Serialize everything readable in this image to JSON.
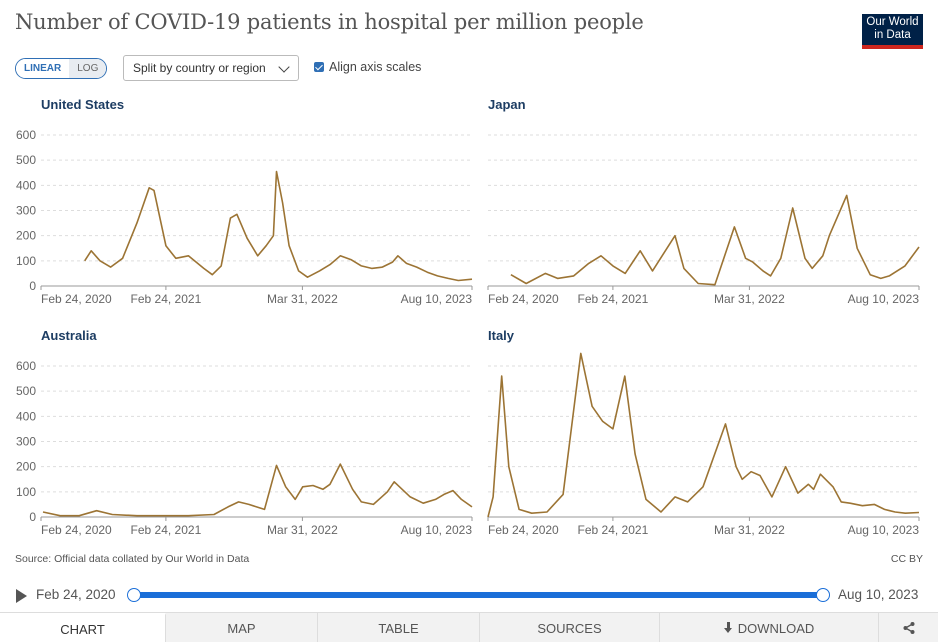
{
  "title": "Number of COVID-19 patients in hospital per million people",
  "logo": {
    "line1": "Our World",
    "line2": "in Data"
  },
  "controls": {
    "linear_label": "LINEAR",
    "log_label": "LOG",
    "split_select": "Split by country or region",
    "align_label": "Align axis scales",
    "align_checked": true
  },
  "source": "Source: Official data collated by Our World in Data",
  "license": "CC BY",
  "timeline": {
    "start": "Feb 24, 2020",
    "end": "Aug 10, 2023",
    "selected_fraction": 1.0
  },
  "tabs": [
    {
      "label": "CHART",
      "active": true
    },
    {
      "label": "MAP",
      "active": false
    },
    {
      "label": "TABLE",
      "active": false
    },
    {
      "label": "SOURCES",
      "active": false
    },
    {
      "label": "DOWNLOAD",
      "active": false
    }
  ],
  "colors": {
    "line": "#9c7434",
    "grid": "#dddddd",
    "panel_title": "#1d3d63",
    "accent": "#1a6ed8"
  },
  "chart_data": [
    {
      "type": "line",
      "title": "United States",
      "ylim": [
        0,
        600
      ],
      "yticks": [
        0,
        100,
        200,
        300,
        400,
        500,
        600
      ],
      "xlim": [
        "2020-02-24",
        "2023-08-10"
      ],
      "xticks": [
        "Feb 24, 2020",
        "Feb 24, 2021",
        "Mar 31, 2022",
        "Aug 10, 2023"
      ],
      "x": [
        "2020-07-01",
        "2020-07-20",
        "2020-08-15",
        "2020-09-15",
        "2020-10-20",
        "2020-12-01",
        "2021-01-06",
        "2021-01-20",
        "2021-02-24",
        "2021-03-25",
        "2021-05-01",
        "2021-06-15",
        "2021-07-10",
        "2021-08-05",
        "2021-09-01",
        "2021-09-20",
        "2021-10-20",
        "2021-11-20",
        "2021-12-15",
        "2022-01-05",
        "2022-01-14",
        "2022-02-01",
        "2022-02-20",
        "2022-03-20",
        "2022-04-15",
        "2022-05-20",
        "2022-06-20",
        "2022-07-20",
        "2022-08-20",
        "2022-09-20",
        "2022-10-20",
        "2022-11-20",
        "2022-12-20",
        "2023-01-05",
        "2023-01-30",
        "2023-03-01",
        "2023-04-01",
        "2023-05-01",
        "2023-06-01",
        "2023-07-01",
        "2023-08-10"
      ],
      "y": [
        100,
        140,
        100,
        75,
        110,
        250,
        390,
        380,
        160,
        110,
        120,
        70,
        45,
        80,
        270,
        285,
        190,
        120,
        160,
        200,
        455,
        330,
        160,
        60,
        35,
        60,
        85,
        120,
        105,
        80,
        70,
        75,
        95,
        120,
        90,
        75,
        55,
        40,
        30,
        22,
        27
      ]
    },
    {
      "type": "line",
      "title": "Japan",
      "ylim": [
        0,
        600
      ],
      "yticks": [
        0,
        100,
        200,
        300,
        400,
        500,
        600
      ],
      "xlim": [
        "2020-02-24",
        "2023-08-10"
      ],
      "xticks": [
        "Feb 24, 2020",
        "Feb 24, 2021",
        "Mar 31, 2022",
        "Aug 10, 2023"
      ],
      "x": [
        "2020-05-01",
        "2020-06-15",
        "2020-08-10",
        "2020-09-15",
        "2020-11-01",
        "2020-12-15",
        "2021-01-20",
        "2021-02-24",
        "2021-04-01",
        "2021-05-15",
        "2021-06-20",
        "2021-08-25",
        "2021-09-20",
        "2021-11-01",
        "2021-12-20",
        "2022-02-15",
        "2022-03-20",
        "2022-04-10",
        "2022-05-10",
        "2022-06-01",
        "2022-07-01",
        "2022-08-05",
        "2022-09-10",
        "2022-10-01",
        "2022-11-01",
        "2022-11-20",
        "2023-01-10",
        "2023-02-10",
        "2023-03-20",
        "2023-04-20",
        "2023-05-15",
        "2023-06-30",
        "2023-08-10"
      ],
      "y": [
        45,
        10,
        50,
        30,
        40,
        90,
        120,
        80,
        50,
        140,
        60,
        200,
        70,
        10,
        5,
        235,
        110,
        95,
        60,
        40,
        110,
        310,
        110,
        70,
        120,
        200,
        360,
        150,
        45,
        30,
        40,
        80,
        155
      ]
    },
    {
      "type": "line",
      "title": "Australia",
      "ylim": [
        0,
        600
      ],
      "yticks": [
        0,
        100,
        200,
        300,
        400,
        500,
        600
      ],
      "xlim": [
        "2020-02-24",
        "2023-08-10"
      ],
      "xticks": [
        "Feb 24, 2020",
        "Feb 24, 2021",
        "Mar 31, 2022",
        "Aug 10, 2023"
      ],
      "x": [
        "2020-03-01",
        "2020-04-20",
        "2020-06-15",
        "2020-08-05",
        "2020-09-20",
        "2020-12-01",
        "2021-02-24",
        "2021-05-01",
        "2021-07-15",
        "2021-08-25",
        "2021-09-25",
        "2021-10-25",
        "2021-12-10",
        "2022-01-14",
        "2022-02-10",
        "2022-03-10",
        "2022-04-01",
        "2022-05-01",
        "2022-05-30",
        "2022-06-20",
        "2022-07-20",
        "2022-08-25",
        "2022-09-20",
        "2022-10-25",
        "2022-12-05",
        "2022-12-25",
        "2023-02-10",
        "2023-03-20",
        "2023-04-25",
        "2023-05-20",
        "2023-06-15",
        "2023-07-10",
        "2023-08-10"
      ],
      "y": [
        20,
        5,
        5,
        25,
        10,
        5,
        5,
        5,
        10,
        40,
        60,
        50,
        30,
        205,
        120,
        70,
        120,
        125,
        110,
        130,
        210,
        110,
        60,
        50,
        100,
        140,
        80,
        55,
        70,
        90,
        105,
        70,
        40
      ]
    },
    {
      "type": "line",
      "title": "Italy",
      "ylim": [
        0,
        600
      ],
      "yticks": [
        0,
        100,
        200,
        300,
        400,
        500,
        600
      ],
      "xlim": [
        "2020-02-24",
        "2023-08-10"
      ],
      "xticks": [
        "Feb 24, 2020",
        "Feb 24, 2021",
        "Mar 31, 2022",
        "Aug 10, 2023"
      ],
      "x": [
        "2020-02-24",
        "2020-03-10",
        "2020-04-04",
        "2020-04-25",
        "2020-05-25",
        "2020-07-01",
        "2020-08-15",
        "2020-10-01",
        "2020-11-22",
        "2020-12-25",
        "2021-01-25",
        "2021-02-24",
        "2021-03-31",
        "2021-04-30",
        "2021-06-01",
        "2021-07-15",
        "2021-08-25",
        "2021-10-01",
        "2021-11-15",
        "2022-01-20",
        "2022-02-20",
        "2022-03-10",
        "2022-04-05",
        "2022-05-01",
        "2022-06-05",
        "2022-07-15",
        "2022-08-20",
        "2022-09-20",
        "2022-10-05",
        "2022-10-25",
        "2022-12-01",
        "2022-12-25",
        "2023-01-20",
        "2023-02-25",
        "2023-04-01",
        "2023-05-01",
        "2023-06-01",
        "2023-07-01",
        "2023-08-10"
      ],
      "y": [
        0,
        80,
        560,
        200,
        30,
        15,
        20,
        90,
        650,
        440,
        380,
        350,
        560,
        250,
        70,
        20,
        80,
        60,
        120,
        370,
        200,
        150,
        180,
        165,
        80,
        200,
        95,
        130,
        110,
        170,
        120,
        60,
        55,
        45,
        50,
        30,
        20,
        15,
        18
      ]
    }
  ]
}
